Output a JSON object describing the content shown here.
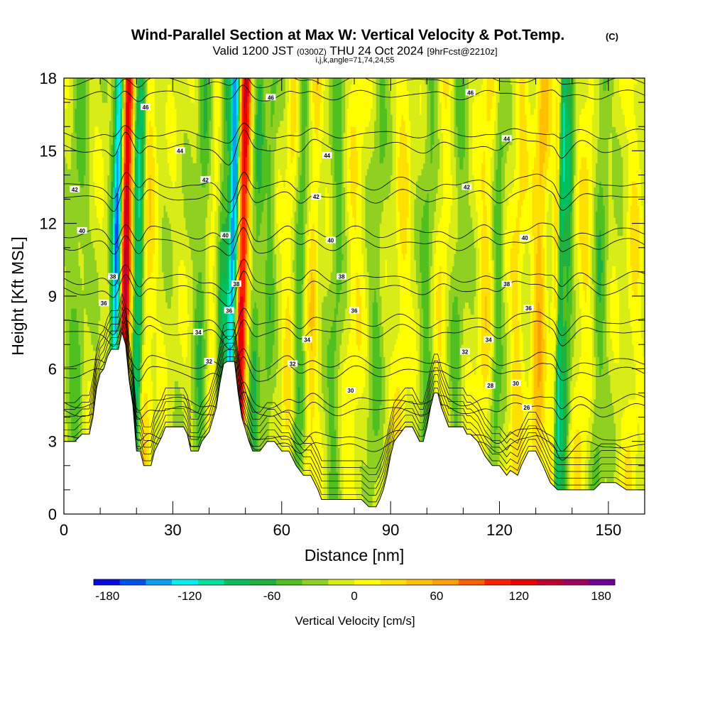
{
  "header": {
    "title": "Wind-Parallel Section at Max W: Vertical Velocity & Pot.Temp.",
    "copyright": "(C)",
    "valid_prefix": "Valid 1200 JST",
    "valid_utc": "(0300Z)",
    "valid_date": "THU 24 Oct 2024",
    "forecast": "[9hrFcst@2210z]",
    "indices": "i,j,k,angle=71,74,24,55"
  },
  "chart_data": {
    "type": "heatmap",
    "xlabel": "Distance [nm]",
    "ylabel": "Height [Kft MSL]",
    "xlim": [
      0,
      160
    ],
    "ylim": [
      0,
      18
    ],
    "x_ticks": [
      0,
      30,
      60,
      90,
      120,
      150
    ],
    "y_ticks": [
      0,
      3,
      6,
      9,
      12,
      15,
      18
    ],
    "terrain": [
      [
        0,
        3.0
      ],
      [
        3,
        3.0
      ],
      [
        5,
        3.3
      ],
      [
        7,
        3.3
      ],
      [
        8,
        4.0
      ],
      [
        9,
        5.2
      ],
      [
        10,
        5.8
      ],
      [
        11,
        6.0
      ],
      [
        12,
        6.5
      ],
      [
        13,
        6.8
      ],
      [
        15,
        6.8
      ],
      [
        16,
        7.5
      ],
      [
        17,
        7.0
      ],
      [
        18,
        5.5
      ],
      [
        19,
        4.5
      ],
      [
        20,
        2.6
      ],
      [
        21,
        2.6
      ],
      [
        22,
        2.0
      ],
      [
        24,
        2.0
      ],
      [
        25,
        2.6
      ],
      [
        27,
        3.2
      ],
      [
        28,
        3.6
      ],
      [
        33,
        3.6
      ],
      [
        34,
        3.3
      ],
      [
        35,
        2.6
      ],
      [
        37,
        2.6
      ],
      [
        38,
        3.0
      ],
      [
        40,
        3.4
      ],
      [
        42,
        4.4
      ],
      [
        43,
        5.4
      ],
      [
        44,
        6.2
      ],
      [
        45,
        6.3
      ],
      [
        47,
        6.3
      ],
      [
        48,
        5.0
      ],
      [
        49,
        4.0
      ],
      [
        50,
        3.5
      ],
      [
        51,
        3.0
      ],
      [
        52,
        2.6
      ],
      [
        54,
        2.6
      ],
      [
        56,
        3.0
      ],
      [
        58,
        3.0
      ],
      [
        60,
        2.6
      ],
      [
        62,
        2.6
      ],
      [
        64,
        2.0
      ],
      [
        66,
        1.6
      ],
      [
        68,
        1.6
      ],
      [
        70,
        1.0
      ],
      [
        71,
        0.6
      ],
      [
        76,
        0.6
      ],
      [
        78,
        0.6
      ],
      [
        82,
        0.6
      ],
      [
        84,
        0.3
      ],
      [
        86,
        0.3
      ],
      [
        87,
        0.6
      ],
      [
        88,
        1.0
      ],
      [
        89,
        1.6
      ],
      [
        90,
        2.4
      ],
      [
        91,
        3.0
      ],
      [
        92,
        3.2
      ],
      [
        94,
        3.6
      ],
      [
        96,
        3.6
      ],
      [
        97,
        3.3
      ],
      [
        98,
        3.0
      ],
      [
        99,
        3.0
      ],
      [
        100,
        3.6
      ],
      [
        101,
        4.4
      ],
      [
        102,
        5.0
      ],
      [
        103,
        5.0
      ],
      [
        104,
        4.4
      ],
      [
        105,
        4.0
      ],
      [
        106,
        3.6
      ],
      [
        108,
        3.6
      ],
      [
        110,
        3.6
      ],
      [
        111,
        3.3
      ],
      [
        112,
        3.3
      ],
      [
        114,
        3.0
      ],
      [
        116,
        2.4
      ],
      [
        118,
        2.0
      ],
      [
        120,
        2.0
      ],
      [
        122,
        1.6
      ],
      [
        123,
        1.8
      ],
      [
        125,
        1.6
      ],
      [
        126,
        2.0
      ],
      [
        127,
        2.3
      ],
      [
        128,
        2.6
      ],
      [
        130,
        2.6
      ],
      [
        132,
        2.0
      ],
      [
        134,
        1.3
      ],
      [
        136,
        1.0
      ],
      [
        138,
        1.0
      ],
      [
        140,
        1.0
      ],
      [
        146,
        1.0
      ],
      [
        148,
        1.3
      ],
      [
        152,
        1.3
      ],
      [
        155,
        1.0
      ],
      [
        160,
        1.0
      ]
    ],
    "theta_levels": [
      26,
      28,
      30,
      32,
      34,
      36,
      38,
      40,
      42,
      44,
      46
    ],
    "theta_labels": [
      {
        "text": "46",
        "x": 22.5,
        "y": 16.8
      },
      {
        "text": "46",
        "x": 57,
        "y": 17.2
      },
      {
        "text": "46",
        "x": 112,
        "y": 17.4
      },
      {
        "text": "44",
        "x": 32,
        "y": 15.0
      },
      {
        "text": "44",
        "x": 72.5,
        "y": 14.8
      },
      {
        "text": "44",
        "x": 122,
        "y": 15.5
      },
      {
        "text": "42",
        "x": 3,
        "y": 13.4
      },
      {
        "text": "42",
        "x": 39,
        "y": 13.8
      },
      {
        "text": "42",
        "x": 69.5,
        "y": 13.1
      },
      {
        "text": "42",
        "x": 111,
        "y": 13.5
      },
      {
        "text": "40",
        "x": 5,
        "y": 11.7
      },
      {
        "text": "40",
        "x": 44.5,
        "y": 11.5
      },
      {
        "text": "40",
        "x": 73.5,
        "y": 11.3
      },
      {
        "text": "40",
        "x": 127,
        "y": 11.4
      },
      {
        "text": "38",
        "x": 13.5,
        "y": 9.8
      },
      {
        "text": "38",
        "x": 47.5,
        "y": 9.5
      },
      {
        "text": "38",
        "x": 76.5,
        "y": 9.8
      },
      {
        "text": "38",
        "x": 122,
        "y": 9.5
      },
      {
        "text": "36",
        "x": 11,
        "y": 8.7
      },
      {
        "text": "36",
        "x": 45.5,
        "y": 8.4
      },
      {
        "text": "36",
        "x": 80,
        "y": 8.4
      },
      {
        "text": "36",
        "x": 128,
        "y": 8.5
      },
      {
        "text": "34",
        "x": 37,
        "y": 7.5
      },
      {
        "text": "34",
        "x": 67,
        "y": 7.2
      },
      {
        "text": "34",
        "x": 117,
        "y": 7.2
      },
      {
        "text": "32",
        "x": 40,
        "y": 6.3
      },
      {
        "text": "32",
        "x": 63,
        "y": 6.2
      },
      {
        "text": "32",
        "x": 110.5,
        "y": 6.7
      },
      {
        "text": "30",
        "x": 79,
        "y": 5.1
      },
      {
        "text": "30",
        "x": 124.5,
        "y": 5.4
      },
      {
        "text": "28",
        "x": 117.5,
        "y": 5.3
      },
      {
        "text": "26",
        "x": 127.5,
        "y": 4.4
      }
    ],
    "updraft_bands": [
      {
        "x": 17.0,
        "w": 2.0,
        "amp": 150
      },
      {
        "x": 16.0,
        "w": 1.0,
        "amp": 40
      },
      {
        "x": 48.5,
        "w": 1.5,
        "amp": 140
      },
      {
        "x": 50.0,
        "w": 1.0,
        "amp": 50
      },
      {
        "x": 23.0,
        "w": 2.0,
        "amp": 35
      },
      {
        "x": 41.0,
        "w": 2.5,
        "amp": 25
      },
      {
        "x": 62.0,
        "w": 1.5,
        "amp": 30
      },
      {
        "x": 68.5,
        "w": 1.5,
        "amp": 40
      },
      {
        "x": 80.0,
        "w": 2.5,
        "amp": 25
      },
      {
        "x": 93.0,
        "w": 2.0,
        "amp": 30
      },
      {
        "x": 104.0,
        "w": 2.0,
        "amp": 25
      },
      {
        "x": 116.0,
        "w": 2.0,
        "amp": 35
      },
      {
        "x": 125.0,
        "w": 2.0,
        "amp": 35
      },
      {
        "x": 131.0,
        "w": 2.0,
        "amp": 60
      },
      {
        "x": 135.5,
        "w": 1.0,
        "amp": 50
      },
      {
        "x": 143.5,
        "w": 2.5,
        "amp": 30
      },
      {
        "x": 157.0,
        "w": 2.0,
        "amp": 25
      }
    ],
    "downdraft_bands": [
      {
        "x": 14.5,
        "w": 1.5,
        "amp": -170
      },
      {
        "x": 19.5,
        "w": 1.5,
        "amp": -90
      },
      {
        "x": 21.0,
        "w": 1.0,
        "amp": -50
      },
      {
        "x": 46.5,
        "w": 1.5,
        "amp": -160
      },
      {
        "x": 38.0,
        "w": 2.0,
        "amp": -45
      },
      {
        "x": 43.5,
        "w": 1.5,
        "amp": -60
      },
      {
        "x": 53.0,
        "w": 1.5,
        "amp": -45
      },
      {
        "x": 56.5,
        "w": 1.5,
        "amp": -35
      },
      {
        "x": 65.0,
        "w": 1.5,
        "amp": -45
      },
      {
        "x": 75.0,
        "w": 2.0,
        "amp": -35
      },
      {
        "x": 86.0,
        "w": 2.0,
        "amp": -30
      },
      {
        "x": 100.0,
        "w": 2.0,
        "amp": -35
      },
      {
        "x": 108.5,
        "w": 2.0,
        "amp": -30
      },
      {
        "x": 119.5,
        "w": 1.5,
        "amp": -40
      },
      {
        "x": 136.5,
        "w": 1.0,
        "amp": -80
      },
      {
        "x": 138.5,
        "w": 1.5,
        "amp": -60
      },
      {
        "x": 147.5,
        "w": 2.0,
        "amp": -40
      },
      {
        "x": 3.5,
        "w": 2.5,
        "amp": -30
      }
    ],
    "colorbar": {
      "title": "Vertical Velocity [cm/s]",
      "min": -190,
      "max": 190,
      "step": 20,
      "tick_values": [
        -180,
        -120,
        -60,
        0,
        60,
        120,
        180
      ],
      "tick_labels": [
        "-180",
        "-120",
        "-60",
        "0",
        "60",
        "120",
        "180"
      ],
      "colors": [
        "#0a0adc",
        "#0050ec",
        "#00a0f0",
        "#00f0f0",
        "#00e0a0",
        "#00c060",
        "#20b040",
        "#50c020",
        "#90d020",
        "#d8ec18",
        "#ffff00",
        "#ffe000",
        "#ffc000",
        "#ffa000",
        "#ff6000",
        "#ff2000",
        "#e80000",
        "#c0002c",
        "#a00060",
        "#700090"
      ]
    }
  }
}
